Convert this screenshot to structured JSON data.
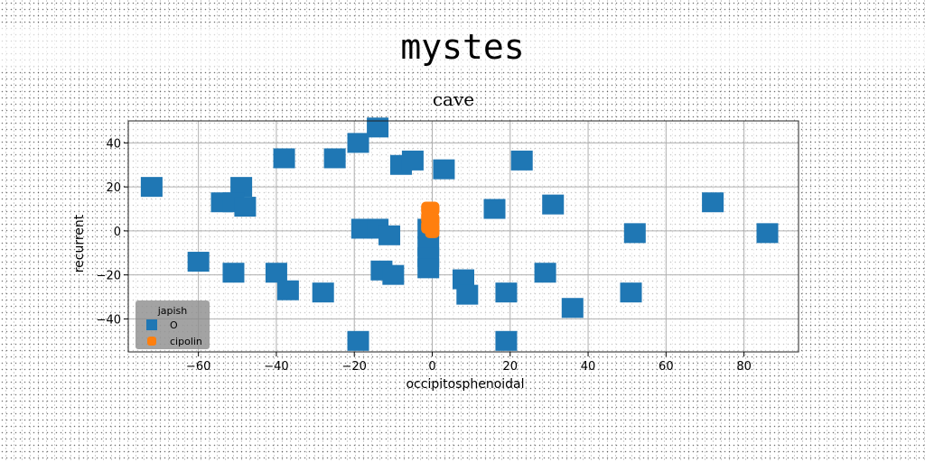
{
  "suptitle": "mystes",
  "chart_data": {
    "type": "scatter",
    "title": "cave",
    "xlabel": "occipitosphenoidal",
    "ylabel": "recurrent",
    "xlim": [
      -78,
      94
    ],
    "ylim": [
      -55,
      50
    ],
    "xticks": [
      -60,
      -40,
      -20,
      0,
      20,
      40,
      60,
      80
    ],
    "yticks": [
      -40,
      -20,
      0,
      20,
      40
    ],
    "grid": true,
    "legend": {
      "title": "japish",
      "position": "lower-left"
    },
    "series": [
      {
        "name": "O",
        "color": "#1f77b4",
        "marker": "square",
        "points": [
          [
            -72,
            20
          ],
          [
            -14,
            47
          ],
          [
            -19,
            40
          ],
          [
            -38,
            33
          ],
          [
            -25,
            33
          ],
          [
            -8,
            30
          ],
          [
            -5,
            32
          ],
          [
            3,
            28
          ],
          [
            23,
            32
          ],
          [
            -49,
            20
          ],
          [
            -54,
            13
          ],
          [
            -51,
            13
          ],
          [
            -48,
            11
          ],
          [
            31,
            12
          ],
          [
            16,
            10
          ],
          [
            72,
            13
          ],
          [
            -18,
            1
          ],
          [
            -14,
            1
          ],
          [
            -11,
            -2
          ],
          [
            -1,
            1
          ],
          [
            52,
            -1
          ],
          [
            86,
            -1
          ],
          [
            -1,
            -7
          ],
          [
            -1,
            -12
          ],
          [
            -1,
            -17
          ],
          [
            -60,
            -14
          ],
          [
            -51,
            -19
          ],
          [
            -40,
            -19
          ],
          [
            -13,
            -18
          ],
          [
            -10,
            -20
          ],
          [
            29,
            -19
          ],
          [
            8,
            -22
          ],
          [
            9,
            -29
          ],
          [
            -37,
            -27
          ],
          [
            -28,
            -28
          ],
          [
            19,
            -28
          ],
          [
            51,
            -28
          ],
          [
            36,
            -35
          ],
          [
            -19,
            -50
          ],
          [
            19,
            -50
          ]
        ]
      },
      {
        "name": "cipolin",
        "color": "#ff7f0e",
        "marker": "rounded",
        "points": [
          [
            -1,
            10
          ],
          [
            0,
            10
          ],
          [
            -1,
            6
          ],
          [
            0,
            5
          ],
          [
            -1,
            2
          ],
          [
            0,
            1
          ],
          [
            0,
            0
          ]
        ]
      }
    ]
  }
}
